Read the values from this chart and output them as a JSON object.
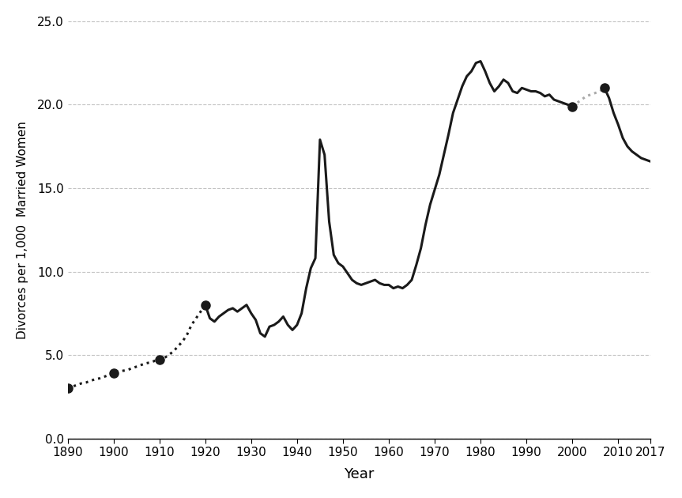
{
  "title": "",
  "xlabel": "Year",
  "ylabel": "Divorces per 1,000  Married Women",
  "xlim": [
    1890,
    2017
  ],
  "ylim": [
    0.0,
    25.0
  ],
  "yticks": [
    0.0,
    5.0,
    10.0,
    15.0,
    20.0,
    25.0
  ],
  "xticks": [
    1890,
    1900,
    1910,
    1920,
    1930,
    1940,
    1950,
    1960,
    1970,
    1980,
    1990,
    2000,
    2010,
    2017
  ],
  "dotted_black_segment": {
    "years": [
      1890,
      1891,
      1892,
      1893,
      1894,
      1895,
      1896,
      1897,
      1898,
      1899,
      1900,
      1901,
      1902,
      1903,
      1904,
      1905,
      1906,
      1907,
      1908,
      1909,
      1910,
      1911,
      1912,
      1913,
      1914,
      1915,
      1916,
      1917,
      1918,
      1919,
      1920
    ],
    "values": [
      3.0,
      3.1,
      3.2,
      3.3,
      3.35,
      3.45,
      3.55,
      3.6,
      3.7,
      3.8,
      3.9,
      4.0,
      4.05,
      4.1,
      4.2,
      4.3,
      4.4,
      4.5,
      4.55,
      4.65,
      4.7,
      4.8,
      5.0,
      5.2,
      5.5,
      5.8,
      6.2,
      6.8,
      7.2,
      7.6,
      8.0
    ]
  },
  "solid_black_segment": {
    "years": [
      1920,
      1921,
      1922,
      1923,
      1924,
      1925,
      1926,
      1927,
      1928,
      1929,
      1930,
      1931,
      1932,
      1933,
      1934,
      1935,
      1936,
      1937,
      1938,
      1939,
      1940,
      1941,
      1942,
      1943,
      1944,
      1945,
      1946,
      1947,
      1948,
      1949,
      1950,
      1951,
      1952,
      1953,
      1954,
      1955,
      1956,
      1957,
      1958,
      1959,
      1960,
      1961,
      1962,
      1963,
      1964,
      1965,
      1966,
      1967,
      1968,
      1969,
      1970,
      1971,
      1972,
      1973,
      1974,
      1975,
      1976,
      1977,
      1978,
      1979,
      1980,
      1981,
      1982,
      1983,
      1984,
      1985,
      1986,
      1987,
      1988,
      1989,
      1990,
      1991,
      1992,
      1993,
      1994,
      1995,
      1996,
      1997,
      1998,
      1999,
      2000
    ],
    "values": [
      8.0,
      7.2,
      7.0,
      7.3,
      7.5,
      7.7,
      7.8,
      7.6,
      7.8,
      8.0,
      7.5,
      7.1,
      6.3,
      6.1,
      6.7,
      6.8,
      7.0,
      7.3,
      6.8,
      6.5,
      6.8,
      7.5,
      9.0,
      10.2,
      10.8,
      17.9,
      17.0,
      13.0,
      11.0,
      10.5,
      10.3,
      9.9,
      9.5,
      9.3,
      9.2,
      9.3,
      9.4,
      9.5,
      9.3,
      9.2,
      9.2,
      9.0,
      9.1,
      9.0,
      9.2,
      9.5,
      10.4,
      11.4,
      12.8,
      14.0,
      14.9,
      15.8,
      17.0,
      18.2,
      19.5,
      20.3,
      21.1,
      21.7,
      22.0,
      22.5,
      22.6,
      22.0,
      21.3,
      20.8,
      21.1,
      21.5,
      21.3,
      20.8,
      20.7,
      21.0,
      20.9,
      20.8,
      20.8,
      20.7,
      20.5,
      20.6,
      20.3,
      20.2,
      20.1,
      20.0,
      19.9
    ]
  },
  "dotted_gray_segment": {
    "years": [
      2000,
      2001,
      2002,
      2003,
      2004,
      2005,
      2006,
      2007
    ],
    "values": [
      19.9,
      20.1,
      20.3,
      20.5,
      20.6,
      20.7,
      20.8,
      21.0
    ]
  },
  "solid_black_segment2": {
    "years": [
      2007,
      2008,
      2009,
      2010,
      2011,
      2012,
      2013,
      2014,
      2015,
      2016,
      2017
    ],
    "values": [
      21.0,
      20.4,
      19.5,
      18.8,
      18.0,
      17.5,
      17.2,
      17.0,
      16.8,
      16.7,
      16.6
    ]
  },
  "marker_points": [
    {
      "year": 1890,
      "value": 3.0
    },
    {
      "year": 1900,
      "value": 3.9
    },
    {
      "year": 1910,
      "value": 4.7
    },
    {
      "year": 1920,
      "value": 8.0
    },
    {
      "year": 2000,
      "value": 19.9
    },
    {
      "year": 2007,
      "value": 21.0
    }
  ],
  "line_color_solid": "#1a1a1a",
  "line_color_dotted_black": "#1a1a1a",
  "line_color_dotted_gray": "#aaaaaa",
  "line_width": 2.2,
  "marker_size": 8,
  "background_color": "#ffffff",
  "grid_color": "#aaaaaa",
  "grid_style": "--",
  "grid_alpha": 0.7
}
